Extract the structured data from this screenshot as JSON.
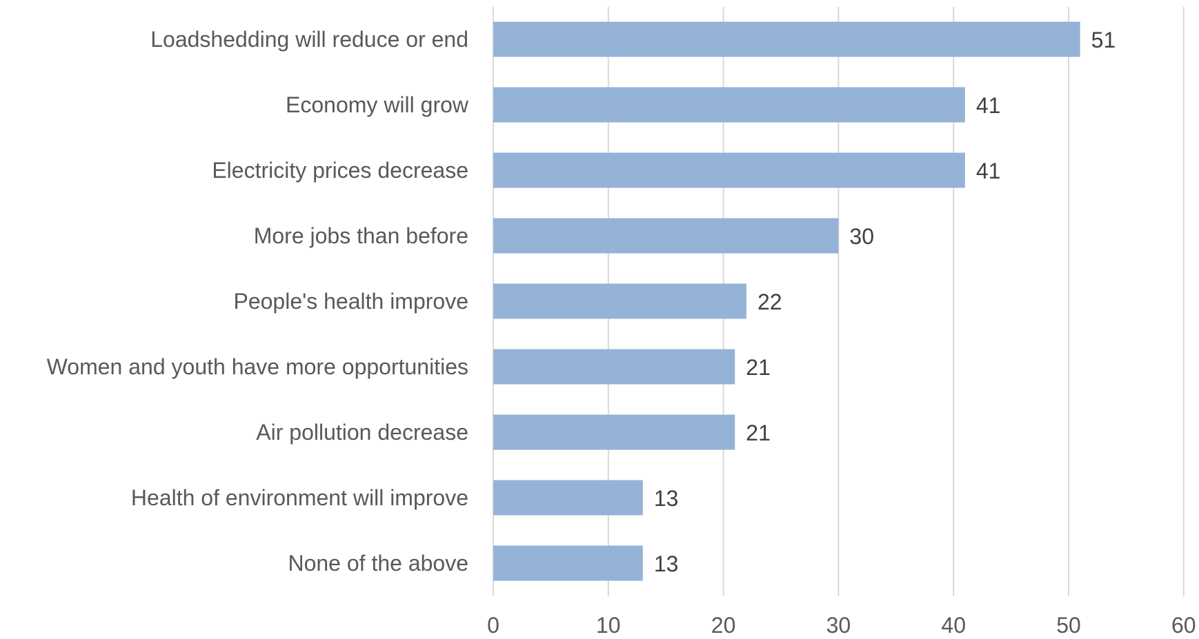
{
  "chart_data": {
    "type": "bar",
    "orientation": "horizontal",
    "title": "",
    "xlabel": "",
    "ylabel": "",
    "categories": [
      "Loadshedding will reduce or end",
      "Economy will grow",
      "Electricity prices decrease",
      "More jobs than before",
      "People's health improve",
      "Women and youth have more opportunities",
      "Air pollution decrease",
      "Health of environment will improve",
      "None of the above"
    ],
    "values": [
      51,
      41,
      41,
      30,
      22,
      21,
      21,
      13,
      13
    ],
    "data_labels": [
      "51",
      "41",
      "41",
      "30",
      "22",
      "21",
      "21",
      "13",
      "13"
    ],
    "xlim": [
      0,
      60
    ],
    "x_ticks": [
      0,
      10,
      20,
      30,
      40,
      50,
      60
    ],
    "x_tick_labels": [
      "0",
      "10",
      "20",
      "30",
      "40",
      "50",
      "60"
    ],
    "grid": "vertical",
    "legend": "none",
    "bar_color": "#95b3d7"
  }
}
